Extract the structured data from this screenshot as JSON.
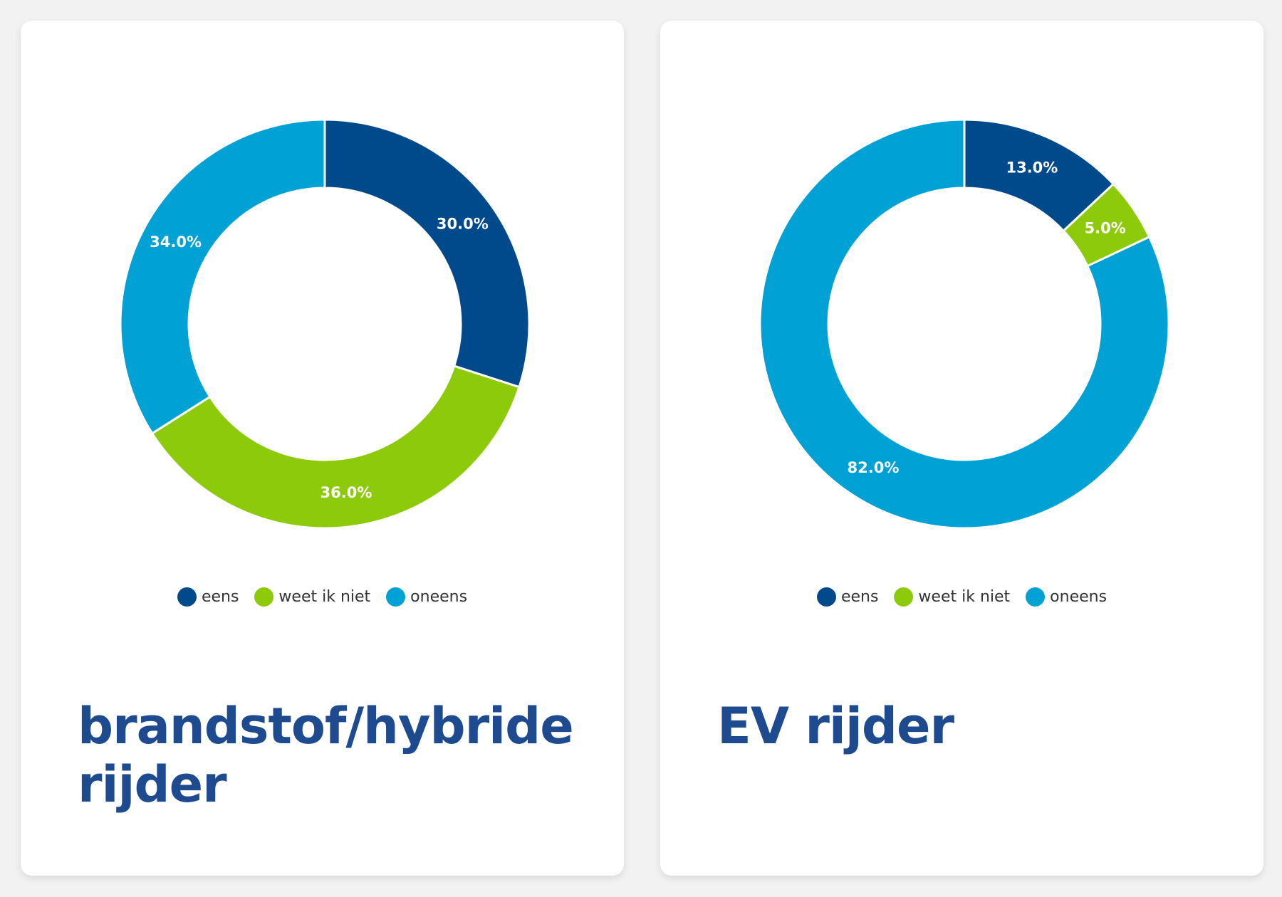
{
  "colors": {
    "eens": "#004a8c",
    "weet_ik_niet": "#8dca0a",
    "oneens": "#00a1d4",
    "title": "#1e4b8f"
  },
  "cards": [
    {
      "title": "brandstof/hybride rijder"
    },
    {
      "title": "EV rijder"
    }
  ],
  "chart_data": [
    {
      "type": "pie",
      "variant": "donut",
      "title": "brandstof/hybride rijder",
      "categories": [
        "eens",
        "weet ik niet",
        "oneens"
      ],
      "values": [
        30.0,
        36.0,
        34.0
      ],
      "data_labels": [
        "30.0%",
        "36.0%",
        "34.0%"
      ],
      "unit": "%",
      "legend_position": "bottom",
      "start_angle": "12 o'clock, clockwise"
    },
    {
      "type": "pie",
      "variant": "donut",
      "title": "EV rijder",
      "categories": [
        "eens",
        "weet ik niet",
        "oneens"
      ],
      "values": [
        13.0,
        5.0,
        82.0
      ],
      "data_labels": [
        "13.0%",
        "5.0%",
        "82.0%"
      ],
      "unit": "%",
      "legend_position": "bottom",
      "start_angle": "12 o'clock, clockwise"
    }
  ]
}
